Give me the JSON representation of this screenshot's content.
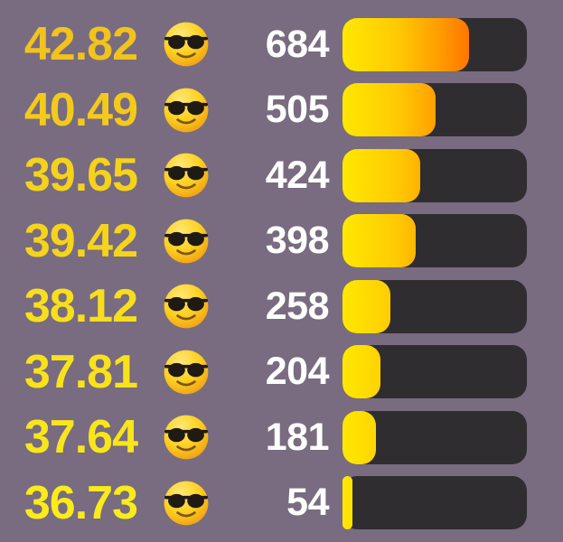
{
  "chart_data": {
    "type": "bar",
    "orientation": "horizontal",
    "description": "Leaderboard-style horizontal bar chart; each row shows a yellow score, a sunglasses emoji, a white count value, and a yellow-to-orange gradient bar on a dark track",
    "scale_max": 1000,
    "categories": [
      "42.82",
      "40.49",
      "39.65",
      "39.42",
      "38.12",
      "37.81",
      "37.64",
      "36.73"
    ],
    "values": [
      684,
      505,
      424,
      398,
      258,
      204,
      181,
      54
    ],
    "rows": [
      {
        "score": "42.82",
        "count": 684,
        "emoji": "smiling-face-with-sunglasses",
        "score_color": "#f1c31d"
      },
      {
        "score": "40.49",
        "count": 505,
        "emoji": "smiling-face-with-sunglasses",
        "score_color": "#f3ca1c"
      },
      {
        "score": "39.65",
        "count": 424,
        "emoji": "smiling-face-with-sunglasses",
        "score_color": "#f5d21c"
      },
      {
        "score": "39.42",
        "count": 398,
        "emoji": "smiling-face-with-sunglasses",
        "score_color": "#f5d41c"
      },
      {
        "score": "38.12",
        "count": 258,
        "emoji": "smiling-face-with-sunglasses",
        "score_color": "#f7df1b"
      },
      {
        "score": "37.81",
        "count": 204,
        "emoji": "smiling-face-with-sunglasses",
        "score_color": "#f8e31b"
      },
      {
        "score": "37.64",
        "count": 181,
        "emoji": "smiling-face-with-sunglasses",
        "score_color": "#f8e61b"
      },
      {
        "score": "36.73",
        "count": 54,
        "emoji": "smiling-face-with-sunglasses",
        "score_color": "#f9ec1a"
      }
    ]
  },
  "colors": {
    "background": "#796b80",
    "bar_track": "#302d31",
    "count_text": "#ffffff",
    "bar_gradient": [
      "#ffe802",
      "#ffc903",
      "#ffa201",
      "#ff7300",
      "#ff4d00"
    ],
    "bar_gradient_positions": [
      "0%",
      "30%",
      "50%",
      "70%",
      "90%"
    ]
  }
}
